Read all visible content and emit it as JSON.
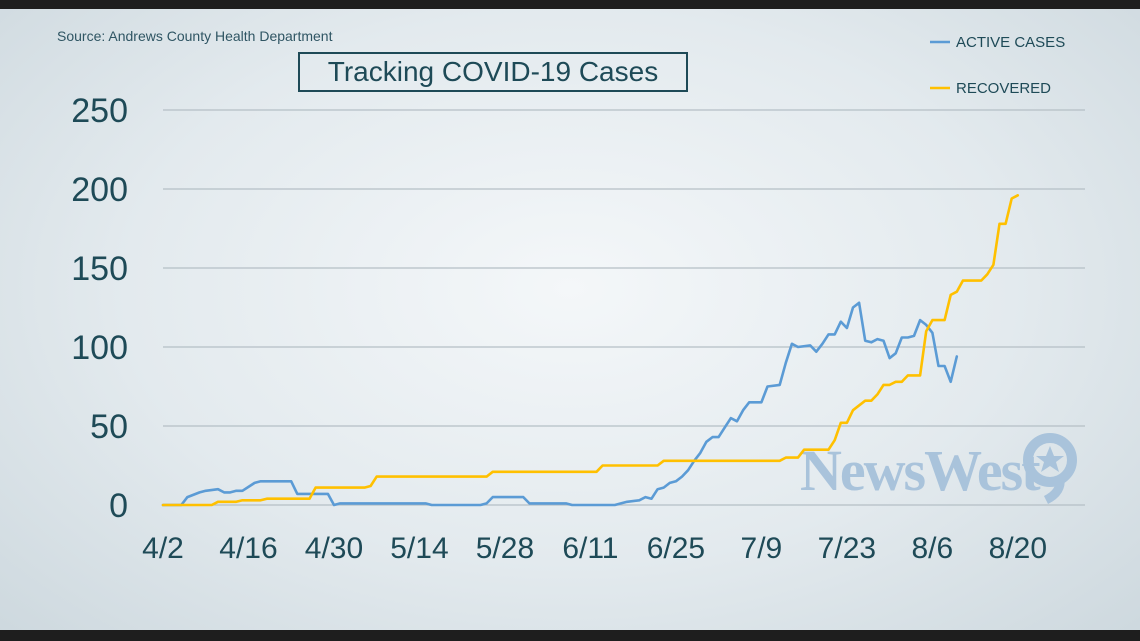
{
  "source": "Source: Andrews County Health Department",
  "logo": "NewsWest",
  "colors": {
    "active": "#5b9bd5",
    "recovered": "#ffc000",
    "grid": "#b5bfc5",
    "text": "#1e4a57"
  },
  "chart_data": {
    "type": "line",
    "title": "Tracking COVID-19 Cases",
    "xlabel": "",
    "ylabel": "",
    "ylim": [
      0,
      250
    ],
    "yticks": [
      0,
      50,
      100,
      150,
      200,
      250
    ],
    "xlim": [
      "4/2",
      "8/31"
    ],
    "xticks": [
      "4/2",
      "4/16",
      "4/30",
      "5/14",
      "5/28",
      "6/11",
      "6/25",
      "7/9",
      "7/23",
      "8/6",
      "8/20"
    ],
    "grid": "horizontal",
    "legend": "top-right",
    "series": [
      {
        "name": "ACTIVE CASES",
        "color": "#5b9bd5",
        "points": [
          [
            "4/2",
            0
          ],
          [
            "4/5",
            0
          ],
          [
            "4/6",
            5
          ],
          [
            "4/8",
            8
          ],
          [
            "4/9",
            9
          ],
          [
            "4/11",
            10
          ],
          [
            "4/12",
            8
          ],
          [
            "4/13",
            8
          ],
          [
            "4/14",
            9
          ],
          [
            "4/15",
            9
          ],
          [
            "4/17",
            14
          ],
          [
            "4/18",
            15
          ],
          [
            "4/23",
            15
          ],
          [
            "4/24",
            7
          ],
          [
            "4/29",
            7
          ],
          [
            "4/30",
            0
          ],
          [
            "5/1",
            1
          ],
          [
            "5/15",
            1
          ],
          [
            "5/16",
            0
          ],
          [
            "5/24",
            0
          ],
          [
            "5/25",
            1
          ],
          [
            "5/26",
            5
          ],
          [
            "5/31",
            5
          ],
          [
            "6/1",
            1
          ],
          [
            "6/7",
            1
          ],
          [
            "6/8",
            0
          ],
          [
            "6/15",
            0
          ],
          [
            "6/16",
            1
          ],
          [
            "6/17",
            2
          ],
          [
            "6/19",
            3
          ],
          [
            "6/20",
            5
          ],
          [
            "6/21",
            4
          ],
          [
            "6/22",
            10
          ],
          [
            "6/23",
            11
          ],
          [
            "6/24",
            14
          ],
          [
            "6/25",
            15
          ],
          [
            "6/26",
            18
          ],
          [
            "6/27",
            22
          ],
          [
            "6/28",
            28
          ],
          [
            "6/29",
            33
          ],
          [
            "6/30",
            40
          ],
          [
            "7/1",
            43
          ],
          [
            "7/2",
            43
          ],
          [
            "7/3",
            49
          ],
          [
            "7/4",
            55
          ],
          [
            "7/5",
            53
          ],
          [
            "7/6",
            60
          ],
          [
            "7/7",
            65
          ],
          [
            "7/9",
            65
          ],
          [
            "7/10",
            75
          ],
          [
            "7/12",
            76
          ],
          [
            "7/13",
            90
          ],
          [
            "7/14",
            102
          ],
          [
            "7/15",
            100
          ],
          [
            "7/17",
            101
          ],
          [
            "7/18",
            97
          ],
          [
            "7/19",
            102
          ],
          [
            "7/20",
            108
          ],
          [
            "7/21",
            108
          ],
          [
            "7/22",
            116
          ],
          [
            "7/23",
            112
          ],
          [
            "7/24",
            125
          ],
          [
            "7/25",
            128
          ],
          [
            "7/26",
            104
          ],
          [
            "7/27",
            103
          ],
          [
            "7/28",
            105
          ],
          [
            "7/29",
            104
          ],
          [
            "7/30",
            93
          ],
          [
            "7/31",
            96
          ],
          [
            "8/1",
            106
          ],
          [
            "8/2",
            106
          ],
          [
            "8/3",
            107
          ],
          [
            "8/4",
            117
          ],
          [
            "8/5",
            114
          ],
          [
            "8/6",
            109
          ],
          [
            "8/7",
            88
          ],
          [
            "8/8",
            88
          ],
          [
            "8/9",
            78
          ],
          [
            "8/10",
            94
          ]
        ]
      },
      {
        "name": "RECOVERED",
        "color": "#ffc000",
        "points": [
          [
            "4/2",
            0
          ],
          [
            "4/10",
            0
          ],
          [
            "4/11",
            2
          ],
          [
            "4/14",
            2
          ],
          [
            "4/15",
            3
          ],
          [
            "4/18",
            3
          ],
          [
            "4/19",
            4
          ],
          [
            "4/26",
            4
          ],
          [
            "4/27",
            11
          ],
          [
            "5/5",
            11
          ],
          [
            "5/6",
            12
          ],
          [
            "5/7",
            18
          ],
          [
            "5/25",
            18
          ],
          [
            "5/26",
            21
          ],
          [
            "6/12",
            21
          ],
          [
            "6/13",
            25
          ],
          [
            "6/22",
            25
          ],
          [
            "6/23",
            28
          ],
          [
            "7/12",
            28
          ],
          [
            "7/13",
            30
          ],
          [
            "7/15",
            30
          ],
          [
            "7/16",
            35
          ],
          [
            "7/20",
            35
          ],
          [
            "7/21",
            41
          ],
          [
            "7/22",
            52
          ],
          [
            "7/23",
            52
          ],
          [
            "7/24",
            60
          ],
          [
            "7/26",
            66
          ],
          [
            "7/27",
            66
          ],
          [
            "7/28",
            70
          ],
          [
            "7/29",
            76
          ],
          [
            "7/30",
            76
          ],
          [
            "7/31",
            78
          ],
          [
            "8/1",
            78
          ],
          [
            "8/2",
            82
          ],
          [
            "8/4",
            82
          ],
          [
            "8/5",
            110
          ],
          [
            "8/6",
            117
          ],
          [
            "8/8",
            117
          ],
          [
            "8/9",
            133
          ],
          [
            "8/10",
            135
          ],
          [
            "8/11",
            142
          ],
          [
            "8/14",
            142
          ],
          [
            "8/15",
            146
          ],
          [
            "8/16",
            152
          ],
          [
            "8/17",
            178
          ],
          [
            "8/18",
            178
          ],
          [
            "8/19",
            194
          ],
          [
            "8/20",
            196
          ]
        ]
      }
    ]
  }
}
